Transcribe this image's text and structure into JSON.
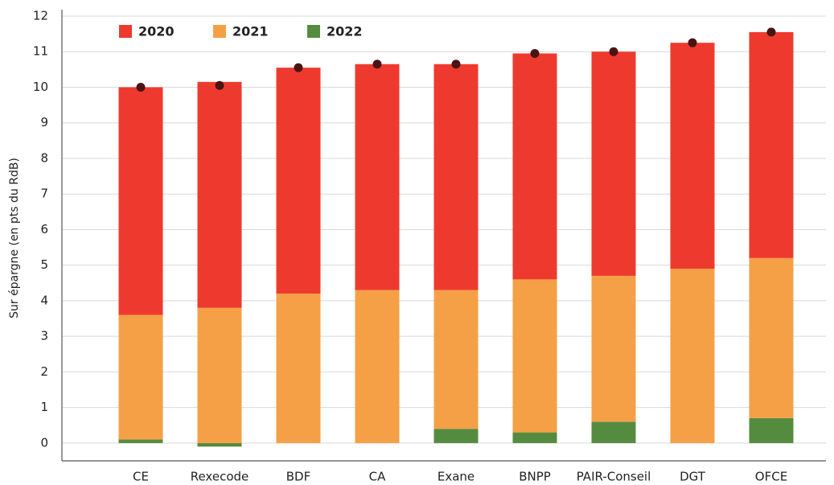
{
  "chart_data": {
    "type": "stacked_bar",
    "y_label": "Sur épargne (en pts du RdB)",
    "categories": [
      "CE",
      "Rexecode",
      "BDF",
      "CA",
      "Exane",
      "BNPP",
      "PAIR-Conseil",
      "DGT",
      "OFCE"
    ],
    "series": [
      {
        "name": "2020",
        "color": "#ee3a2e",
        "values": [
          6.4,
          6.35,
          6.35,
          6.35,
          6.35,
          6.35,
          6.3,
          6.35,
          6.35
        ]
      },
      {
        "name": "2021",
        "color": "#f5a046",
        "values": [
          3.5,
          3.8,
          4.2,
          4.3,
          3.9,
          4.3,
          4.1,
          4.9,
          4.5
        ]
      },
      {
        "name": "2022",
        "color": "#558b3f",
        "values": [
          0.1,
          -0.1,
          0,
          0,
          0.4,
          0.3,
          0.6,
          0,
          0.7
        ]
      }
    ],
    "total_marker_color": "#4a1414",
    "ylim": [
      -0.5,
      12
    ],
    "yticks": [
      0,
      1,
      2,
      3,
      4,
      5,
      6,
      7,
      8,
      9,
      10,
      11,
      12
    ],
    "grid": true
  }
}
